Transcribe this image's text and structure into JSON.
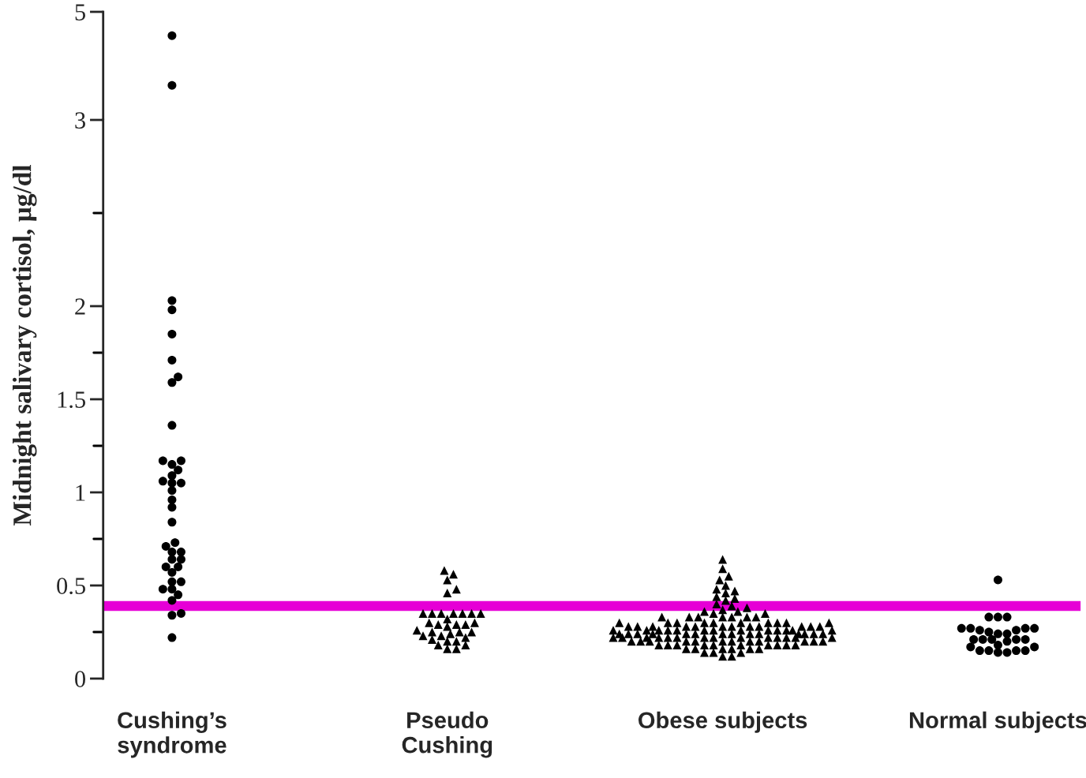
{
  "chart_data": [
    {
      "type": "scatter",
      "tick_labels": "y",
      "categories": [
        "Cushing’s\nsyndrome",
        "Pseudo\nCushing",
        "Obese subjects",
        "Normal subjects"
      ],
      "ylim": [
        3,
        5
      ],
      "yticks": [
        3,
        5
      ],
      "series": [
        {
          "color": "#000000",
          "marker": "circle",
          "x": [
            "Cushing’s\nsyndrome",
            "Cushing’s\nsyndrome"
          ],
          "values": [
            4.56,
            3.64
          ]
        }
      ]
    },
    {
      "type": "scatter",
      "categories": [
        "Cushing’s\nsyndrome",
        "Pseudo\nCushing",
        "Obese subjects",
        "Normal subjects"
      ],
      "ylabel": "Midnight salivary cortisol, µg/dl",
      "ylim": [
        0,
        3
      ],
      "yticks": [
        0,
        {
          "value": 0.25,
          "label": null
        },
        0.5,
        {
          "value": 0.75,
          "label": null
        },
        1,
        {
          "value": 1.25,
          "label": null
        },
        1.5,
        {
          "value": 1.75,
          "label": null
        },
        2,
        {
          "value": 2.5,
          "label": null
        }
      ],
      "ref_lines": [
        {
          "axis": "y",
          "value": 0.39,
          "color": "#e600d6"
        }
      ],
      "series": [
        {
          "color": "#000000",
          "marker": "circle",
          "x": [
            "Cushing’s\nsyndrome",
            "Cushing’s\nsyndrome",
            "Cushing’s\nsyndrome",
            "Cushing’s\nsyndrome",
            "Cushing’s\nsyndrome",
            "Cushing’s\nsyndrome",
            "Cushing’s\nsyndrome",
            "Cushing’s\nsyndrome",
            "Cushing’s\nsyndrome",
            "Cushing’s\nsyndrome",
            "Cushing’s\nsyndrome",
            "Cushing’s\nsyndrome",
            "Cushing’s\nsyndrome",
            "Cushing’s\nsyndrome",
            "Cushing’s\nsyndrome",
            "Cushing’s\nsyndrome",
            "Cushing’s\nsyndrome",
            "Cushing’s\nsyndrome",
            "Cushing’s\nsyndrome",
            "Cushing’s\nsyndrome",
            "Cushing’s\nsyndrome",
            "Cushing’s\nsyndrome",
            "Cushing’s\nsyndrome",
            "Cushing’s\nsyndrome",
            "Cushing’s\nsyndrome",
            "Cushing’s\nsyndrome",
            "Cushing’s\nsyndrome",
            "Cushing’s\nsyndrome",
            "Cushing’s\nsyndrome",
            "Cushing’s\nsyndrome",
            "Cushing’s\nsyndrome",
            "Cushing’s\nsyndrome",
            "Cushing’s\nsyndrome",
            "Cushing’s\nsyndrome",
            "Cushing’s\nsyndrome",
            "Cushing’s\nsyndrome",
            "Cushing’s\nsyndrome"
          ],
          "values": [
            2.03,
            1.98,
            1.85,
            1.71,
            1.62,
            1.59,
            1.36,
            1.17,
            1.17,
            1.15,
            1.12,
            1.09,
            1.06,
            1.05,
            1.05,
            1.01,
            0.96,
            0.92,
            0.84,
            0.73,
            0.71,
            0.68,
            0.68,
            0.64,
            0.64,
            0.6,
            0.6,
            0.57,
            0.52,
            0.52,
            0.48,
            0.48,
            0.45,
            0.42,
            0.35,
            0.34,
            0.22
          ]
        },
        {
          "color": "#000000",
          "marker": "triangle",
          "x": [
            "Pseudo\nCushing",
            "Pseudo\nCushing",
            "Pseudo\nCushing",
            "Pseudo\nCushing",
            "Pseudo\nCushing",
            "Pseudo\nCushing",
            "Pseudo\nCushing",
            "Pseudo\nCushing",
            "Pseudo\nCushing",
            "Pseudo\nCushing",
            "Pseudo\nCushing",
            "Pseudo\nCushing",
            "Pseudo\nCushing",
            "Pseudo\nCushing",
            "Pseudo\nCushing",
            "Pseudo\nCushing",
            "Pseudo\nCushing",
            "Pseudo\nCushing",
            "Pseudo\nCushing",
            "Pseudo\nCushing",
            "Pseudo\nCushing",
            "Pseudo\nCushing",
            "Pseudo\nCushing",
            "Pseudo\nCushing",
            "Pseudo\nCushing",
            "Pseudo\nCushing",
            "Pseudo\nCushing",
            "Pseudo\nCushing",
            "Pseudo\nCushing",
            "Pseudo\nCushing",
            "Pseudo\nCushing",
            "Pseudo\nCushing",
            "Pseudo\nCushing",
            "Pseudo\nCushing"
          ],
          "values": [
            0.58,
            0.56,
            0.53,
            0.48,
            0.46,
            0.35,
            0.35,
            0.35,
            0.35,
            0.35,
            0.35,
            0.35,
            0.32,
            0.29,
            0.3,
            0.3,
            0.29,
            0.28,
            0.29,
            0.25,
            0.24,
            0.22,
            0.25,
            0.23,
            0.25,
            0.23,
            0.21,
            0.2,
            0.18,
            0.18,
            0.2,
            0.16,
            0.16,
            0.26
          ]
        },
        {
          "color": "#000000",
          "marker": "triangle",
          "x": [
            "Obese subjects",
            "Obese subjects",
            "Obese subjects",
            "Obese subjects",
            "Obese subjects",
            "Obese subjects",
            "Obese subjects",
            "Obese subjects",
            "Obese subjects",
            "Obese subjects",
            "Obese subjects",
            "Obese subjects",
            "Obese subjects",
            "Obese subjects",
            "Obese subjects",
            "Obese subjects",
            "Obese subjects",
            "Obese subjects",
            "Obese subjects",
            "Obese subjects",
            "Obese subjects",
            "Obese subjects",
            "Obese subjects",
            "Obese subjects",
            "Obese subjects",
            "Obese subjects",
            "Obese subjects",
            "Obese subjects",
            "Obese subjects",
            "Obese subjects",
            "Obese subjects",
            "Obese subjects",
            "Obese subjects",
            "Obese subjects",
            "Obese subjects",
            "Obese subjects",
            "Obese subjects",
            "Obese subjects",
            "Obese subjects",
            "Obese subjects",
            "Obese subjects",
            "Obese subjects",
            "Obese subjects",
            "Obese subjects",
            "Obese subjects",
            "Obese subjects",
            "Obese subjects",
            "Obese subjects",
            "Obese subjects",
            "Obese subjects",
            "Obese subjects",
            "Obese subjects",
            "Obese subjects",
            "Obese subjects",
            "Obese subjects",
            "Obese subjects",
            "Obese subjects",
            "Obese subjects",
            "Obese subjects",
            "Obese subjects",
            "Obese subjects",
            "Obese subjects",
            "Obese subjects",
            "Obese subjects",
            "Obese subjects",
            "Obese subjects",
            "Obese subjects",
            "Obese subjects",
            "Obese subjects",
            "Obese subjects",
            "Obese subjects",
            "Obese subjects",
            "Obese subjects",
            "Obese subjects",
            "Obese subjects",
            "Obese subjects",
            "Obese subjects",
            "Obese subjects",
            "Obese subjects",
            "Obese subjects",
            "Obese subjects",
            "Obese subjects",
            "Obese subjects",
            "Obese subjects",
            "Obese subjects",
            "Obese subjects",
            "Obese subjects",
            "Obese subjects",
            "Obese subjects",
            "Obese subjects",
            "Obese subjects",
            "Obese subjects",
            "Obese subjects",
            "Obese subjects",
            "Obese subjects",
            "Obese subjects",
            "Obese subjects",
            "Obese subjects",
            "Obese subjects",
            "Obese subjects",
            "Obese subjects",
            "Obese subjects",
            "Obese subjects",
            "Obese subjects",
            "Obese subjects",
            "Obese subjects",
            "Obese subjects",
            "Obese subjects",
            "Obese subjects",
            "Obese subjects",
            "Obese subjects",
            "Obese subjects",
            "Obese subjects",
            "Obese subjects",
            "Obese subjects",
            "Obese subjects",
            "Obese subjects",
            "Obese subjects",
            "Obese subjects",
            "Obese subjects",
            "Obese subjects",
            "Obese subjects"
          ],
          "values": [
            0.64,
            0.59,
            0.55,
            0.53,
            0.5,
            0.48,
            0.47,
            0.46,
            0.44,
            0.43,
            0.42,
            0.4,
            0.39,
            0.38,
            0.37,
            0.36,
            0.36,
            0.35,
            0.35,
            0.33,
            0.33,
            0.33,
            0.33,
            0.33,
            0.33,
            0.33,
            0.3,
            0.3,
            0.3,
            0.3,
            0.3,
            0.3,
            0.3,
            0.3,
            0.3,
            0.3,
            0.28,
            0.28,
            0.28,
            0.28,
            0.28,
            0.28,
            0.28,
            0.28,
            0.28,
            0.28,
            0.28,
            0.28,
            0.26,
            0.26,
            0.26,
            0.26,
            0.26,
            0.26,
            0.26,
            0.26,
            0.26,
            0.26,
            0.26,
            0.26,
            0.26,
            0.24,
            0.24,
            0.24,
            0.24,
            0.24,
            0.24,
            0.24,
            0.24,
            0.24,
            0.24,
            0.24,
            0.24,
            0.24,
            0.24,
            0.22,
            0.22,
            0.22,
            0.22,
            0.22,
            0.22,
            0.22,
            0.22,
            0.22,
            0.22,
            0.22,
            0.22,
            0.22,
            0.22,
            0.2,
            0.2,
            0.2,
            0.2,
            0.2,
            0.2,
            0.2,
            0.2,
            0.2,
            0.2,
            0.2,
            0.2,
            0.18,
            0.18,
            0.18,
            0.18,
            0.18,
            0.18,
            0.18,
            0.18,
            0.18,
            0.18,
            0.16,
            0.16,
            0.16,
            0.16,
            0.16,
            0.16,
            0.14,
            0.14,
            0.14,
            0.12,
            0.12
          ]
        },
        {
          "color": "#000000",
          "marker": "circle",
          "x": [
            "Normal subjects",
            "Normal subjects",
            "Normal subjects",
            "Normal subjects",
            "Normal subjects",
            "Normal subjects",
            "Normal subjects",
            "Normal subjects",
            "Normal subjects",
            "Normal subjects",
            "Normal subjects",
            "Normal subjects",
            "Normal subjects",
            "Normal subjects",
            "Normal subjects",
            "Normal subjects",
            "Normal subjects",
            "Normal subjects",
            "Normal subjects",
            "Normal subjects",
            "Normal subjects",
            "Normal subjects",
            "Normal subjects",
            "Normal subjects",
            "Normal subjects",
            "Normal subjects",
            "Normal subjects",
            "Normal subjects"
          ],
          "values": [
            0.53,
            0.33,
            0.33,
            0.33,
            0.27,
            0.27,
            0.24,
            0.27,
            0.26,
            0.24,
            0.26,
            0.27,
            0.25,
            0.21,
            0.21,
            0.21,
            0.2,
            0.21,
            0.18,
            0.17,
            0.14,
            0.15,
            0.15,
            0.15,
            0.15,
            0.14,
            0.17,
            0.21
          ]
        }
      ]
    }
  ]
}
